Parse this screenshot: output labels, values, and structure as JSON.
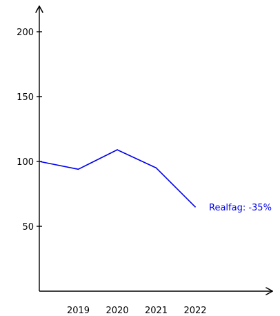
{
  "chart_data": {
    "type": "line",
    "x": [
      "2018",
      "2019",
      "2020",
      "2021",
      "2022"
    ],
    "x_tick_labels": [
      "2019",
      "2020",
      "2021",
      "2022"
    ],
    "y_ticks": [
      50,
      100,
      150,
      200
    ],
    "y_tick_labels": [
      "50",
      "100",
      "150",
      "200"
    ],
    "ylim": [
      0,
      220
    ],
    "series": [
      {
        "name": "Realfag",
        "values": [
          100,
          94,
          109,
          95,
          65
        ],
        "color": "#0000ee",
        "end_label": "Realfag: -35%"
      }
    ],
    "title": "",
    "xlabel": "",
    "ylabel": "",
    "grid": false,
    "legend": "none",
    "axis_color": "#000000"
  }
}
